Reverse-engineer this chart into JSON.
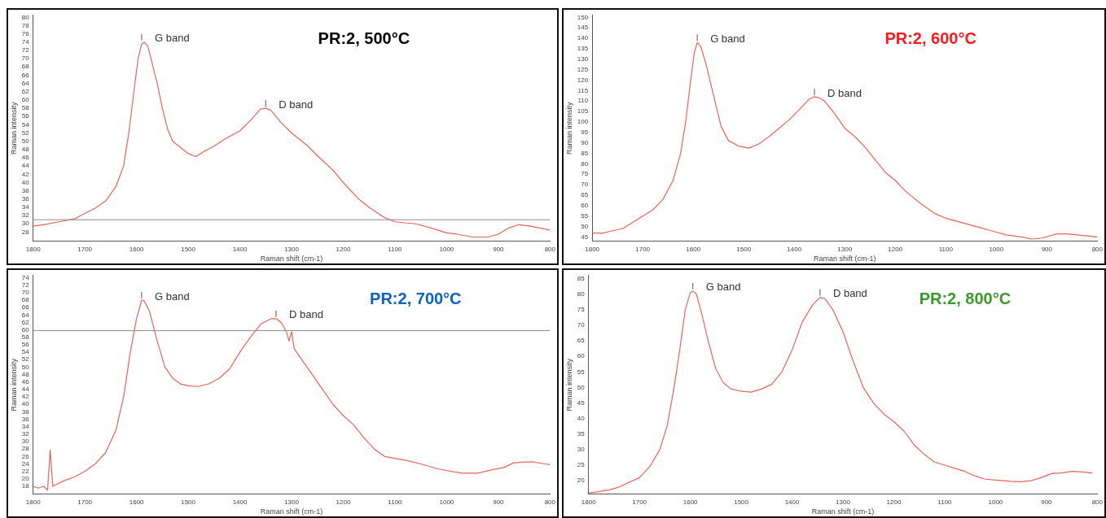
{
  "chart_data": [
    {
      "type": "line",
      "title": "PR:2, 500°C",
      "xlabel": "Raman shift (cm-1)",
      "ylabel": "Raman intensity",
      "marker": "none",
      "xlim": [
        1800,
        800
      ],
      "xticks": [
        1800,
        1700,
        1600,
        1500,
        1400,
        1300,
        1200,
        1100,
        1000,
        900,
        800
      ],
      "ylim": [
        25.8,
        80.5
      ],
      "yticks": [
        28,
        30,
        32,
        34,
        36,
        38,
        40,
        42,
        44,
        46,
        48,
        50,
        52,
        54,
        56,
        58,
        60,
        62,
        64,
        66,
        68,
        70,
        72,
        74,
        76,
        78,
        80
      ],
      "x": [
        1800,
        1780,
        1750,
        1720,
        1700,
        1680,
        1660,
        1640,
        1625,
        1615,
        1605,
        1597,
        1590,
        1585,
        1578,
        1570,
        1560,
        1550,
        1540,
        1530,
        1515,
        1500,
        1485,
        1470,
        1450,
        1430,
        1400,
        1380,
        1360,
        1350,
        1340,
        1320,
        1300,
        1270,
        1250,
        1220,
        1200,
        1170,
        1150,
        1120,
        1100,
        1060,
        1030,
        1000,
        980,
        950,
        920,
        900,
        880,
        860,
        840,
        820,
        800
      ],
      "series": [
        {
          "color": "#e8655a",
          "values": [
            29.5,
            29.8,
            30.5,
            31.2,
            32.5,
            33.8,
            35.5,
            39,
            44,
            52,
            62,
            70,
            73.5,
            74,
            73,
            69,
            64,
            58,
            53,
            50,
            48.5,
            47,
            46.3,
            47.5,
            48.8,
            50.5,
            52.5,
            55,
            57.8,
            58,
            57.5,
            54.5,
            52,
            49,
            46.5,
            43,
            40,
            36,
            34,
            31.5,
            30.5,
            30,
            29,
            27.8,
            27.5,
            26.8,
            26.8,
            27.5,
            29,
            29.8,
            29.5,
            29,
            28.5
          ]
        }
      ],
      "ref_lines": [
        {
          "axis": "y",
          "value": 31,
          "color": "#8c8c8c"
        }
      ],
      "annotations": [
        {
          "text": "G band",
          "x": 1590,
          "y": 74
        },
        {
          "text": "D band",
          "x": 1350,
          "y": 58
        }
      ]
    },
    {
      "type": "line",
      "title": "PR:2, 600°C",
      "xlabel": "Raman shift (cm-1)",
      "ylabel": "Raman intensity",
      "marker": "none",
      "xlim": [
        1800,
        800
      ],
      "xticks": [
        1800,
        1700,
        1600,
        1500,
        1400,
        1300,
        1200,
        1100,
        1000,
        900,
        800
      ],
      "ylim": [
        43,
        151
      ],
      "yticks": [
        45,
        50,
        55,
        60,
        65,
        70,
        75,
        80,
        85,
        90,
        95,
        100,
        105,
        110,
        115,
        120,
        125,
        130,
        135,
        140,
        145,
        150
      ],
      "x": [
        1800,
        1780,
        1760,
        1740,
        1720,
        1700,
        1680,
        1660,
        1640,
        1625,
        1615,
        1605,
        1598,
        1592,
        1585,
        1575,
        1560,
        1545,
        1530,
        1510,
        1490,
        1470,
        1450,
        1430,
        1410,
        1390,
        1370,
        1360,
        1350,
        1340,
        1320,
        1300,
        1280,
        1260,
        1240,
        1220,
        1200,
        1180,
        1150,
        1120,
        1100,
        1070,
        1040,
        1010,
        980,
        950,
        930,
        910,
        880,
        860,
        840,
        820,
        800
      ],
      "series": [
        {
          "color": "#e8655a",
          "values": [
            47,
            46.8,
            48,
            49,
            52,
            55,
            58,
            63,
            72,
            85,
            100,
            120,
            133,
            138,
            136,
            128,
            113,
            98,
            91,
            88.5,
            87.5,
            89.5,
            93,
            97,
            101,
            106,
            111,
            112,
            111.5,
            110,
            104,
            97,
            93,
            88,
            82,
            76,
            72,
            67,
            61,
            56,
            54,
            52,
            50,
            48,
            46,
            45,
            44,
            44.5,
            46.5,
            46.5,
            46,
            45.5,
            45
          ]
        }
      ],
      "annotations": [
        {
          "text": "G band",
          "x": 1592,
          "y": 138
        },
        {
          "text": "D band",
          "x": 1360,
          "y": 112
        }
      ]
    },
    {
      "type": "line",
      "title": "PR:2, 700°C",
      "xlabel": "Raman shift (cm-1)",
      "ylabel": "Raman intensity",
      "marker": "none",
      "xlim": [
        1800,
        800
      ],
      "xticks": [
        1800,
        1700,
        1600,
        1500,
        1400,
        1300,
        1200,
        1100,
        1000,
        900,
        800
      ],
      "ylim": [
        15.9,
        74.6
      ],
      "yticks": [
        18,
        20,
        22,
        24,
        26,
        28,
        30,
        32,
        34,
        36,
        38,
        40,
        42,
        44,
        46,
        48,
        50,
        52,
        54,
        56,
        58,
        60,
        62,
        64,
        66,
        68,
        70,
        72,
        74
      ],
      "x": [
        1800,
        1790,
        1780,
        1772,
        1767,
        1762,
        1755,
        1740,
        1720,
        1700,
        1680,
        1660,
        1640,
        1625,
        1612,
        1600,
        1590,
        1585,
        1575,
        1560,
        1545,
        1530,
        1515,
        1500,
        1480,
        1460,
        1440,
        1420,
        1400,
        1380,
        1360,
        1340,
        1330,
        1320,
        1310,
        1305,
        1300,
        1295,
        1280,
        1260,
        1240,
        1220,
        1200,
        1180,
        1160,
        1140,
        1120,
        1100,
        1080,
        1050,
        1020,
        1000,
        970,
        940,
        910,
        890,
        870,
        850,
        830,
        810,
        800
      ],
      "series": [
        {
          "color": "#e8655a",
          "values": [
            18,
            17.5,
            18,
            17,
            27.7,
            18,
            18.5,
            19.5,
            20.5,
            22,
            24,
            27,
            33,
            42,
            54,
            63,
            68,
            67.8,
            65,
            57,
            50,
            47,
            45.5,
            45,
            44.8,
            45.5,
            47,
            49.5,
            54,
            58,
            61.5,
            63,
            63,
            62,
            59.5,
            57,
            59.5,
            55,
            52,
            48,
            44,
            40,
            37,
            34.5,
            31,
            28,
            26,
            25.5,
            25,
            24,
            22.8,
            22.2,
            21.5,
            21.5,
            22.5,
            23,
            24.3,
            24.5,
            24.5,
            24,
            23.8
          ]
        }
      ],
      "ref_lines": [
        {
          "axis": "y",
          "value": 59.8,
          "color": "#8c8c8c"
        }
      ],
      "annotations": [
        {
          "text": "G band",
          "x": 1590,
          "y": 68
        },
        {
          "text": "D band",
          "x": 1330,
          "y": 63
        }
      ]
    },
    {
      "type": "line",
      "title": "PR:2, 800°C",
      "xlabel": "Raman shift (cm-1)",
      "ylabel": "Raman intensity",
      "marker": "none",
      "xlim": [
        1800,
        800
      ],
      "xticks": [
        1800,
        1700,
        1600,
        1500,
        1400,
        1300,
        1200,
        1100,
        1000,
        900,
        800
      ],
      "ylim": [
        15.7,
        86
      ],
      "yticks": [
        20,
        25,
        30,
        35,
        40,
        45,
        50,
        55,
        60,
        65,
        70,
        75,
        80,
        85
      ],
      "x": [
        1800,
        1780,
        1760,
        1740,
        1720,
        1700,
        1680,
        1660,
        1645,
        1632,
        1620,
        1610,
        1600,
        1595,
        1588,
        1578,
        1565,
        1550,
        1535,
        1520,
        1500,
        1480,
        1460,
        1440,
        1420,
        1400,
        1380,
        1360,
        1345,
        1335,
        1320,
        1300,
        1280,
        1260,
        1240,
        1220,
        1200,
        1180,
        1160,
        1140,
        1120,
        1100,
        1080,
        1060,
        1040,
        1020,
        1000,
        970,
        950,
        930,
        910,
        890,
        870,
        850,
        830,
        810
      ],
      "series": [
        {
          "color": "#e8655a",
          "values": [
            16,
            16.5,
            17,
            18,
            19.5,
            21,
            24.5,
            30,
            38,
            50,
            63,
            75,
            80.5,
            81,
            80,
            74,
            65,
            56,
            51.5,
            49.5,
            48.8,
            48.5,
            49.5,
            51,
            55,
            62,
            71,
            76.5,
            79,
            78.5,
            75,
            68,
            58.5,
            50,
            45,
            41.5,
            39,
            36,
            31.5,
            28.5,
            26,
            25,
            24,
            23,
            21.5,
            20.5,
            20.2,
            19.8,
            19.7,
            20,
            21,
            22.3,
            22.5,
            23,
            22.8,
            22.5
          ]
        }
      ],
      "annotations": [
        {
          "text": "G band",
          "x": 1595,
          "y": 81
        },
        {
          "text": "D band",
          "x": 1345,
          "y": 79
        }
      ]
    }
  ]
}
